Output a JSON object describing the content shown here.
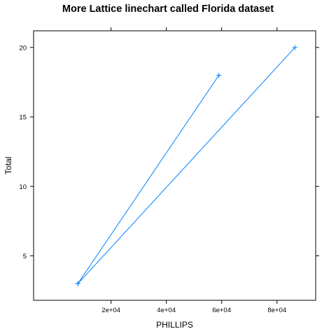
{
  "chart_data": {
    "type": "line",
    "title": "More Lattice linechart called Florida dataset",
    "xlabel": "PHILLIPS",
    "ylabel": "Total",
    "xlim": [
      -8000,
      94000
    ],
    "ylim": [
      1.8,
      21.2
    ],
    "xticks": [
      20000,
      40000,
      60000,
      80000
    ],
    "xtick_labels": [
      "2e+04",
      "4e+04",
      "6e+04",
      "8e+04"
    ],
    "yticks": [
      5,
      10,
      15,
      20
    ],
    "ytick_labels": [
      "5",
      "10",
      "15",
      "20"
    ],
    "grid": false,
    "series": [
      {
        "color": "#0080ff",
        "marker": "plus",
        "x": [
          8000,
          59000,
          8000,
          86500
        ],
        "y": [
          3,
          18,
          3,
          20
        ]
      }
    ]
  }
}
